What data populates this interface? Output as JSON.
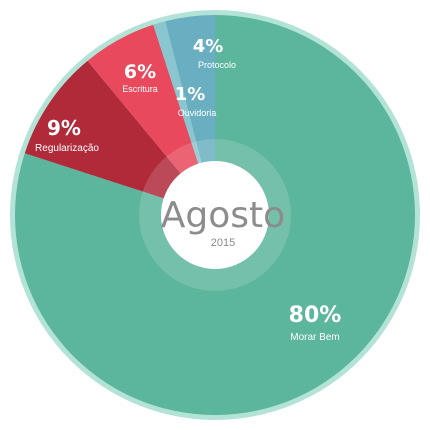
{
  "chart_data": {
    "type": "pie",
    "title": "Agosto",
    "subtitle": "2015",
    "categories": [
      "Morar Bem",
      "Regularização",
      "Escritura",
      "Ouvidoria",
      "Protocolo"
    ],
    "values": [
      80,
      9,
      6,
      1,
      4
    ],
    "labels": [
      "80%",
      "9%",
      "6%",
      "1%",
      "4%"
    ],
    "colors": {
      "Morar Bem": "#5cb59d",
      "Regularização": "#b02a3a",
      "Escritura": "#e8495c",
      "Ouvidoria": "#8ac6cf",
      "Protocolo": "#6aafc1",
      "ring": "#b3e3d6",
      "center": "#ffffff",
      "center_text": "#8c8c8c"
    }
  }
}
